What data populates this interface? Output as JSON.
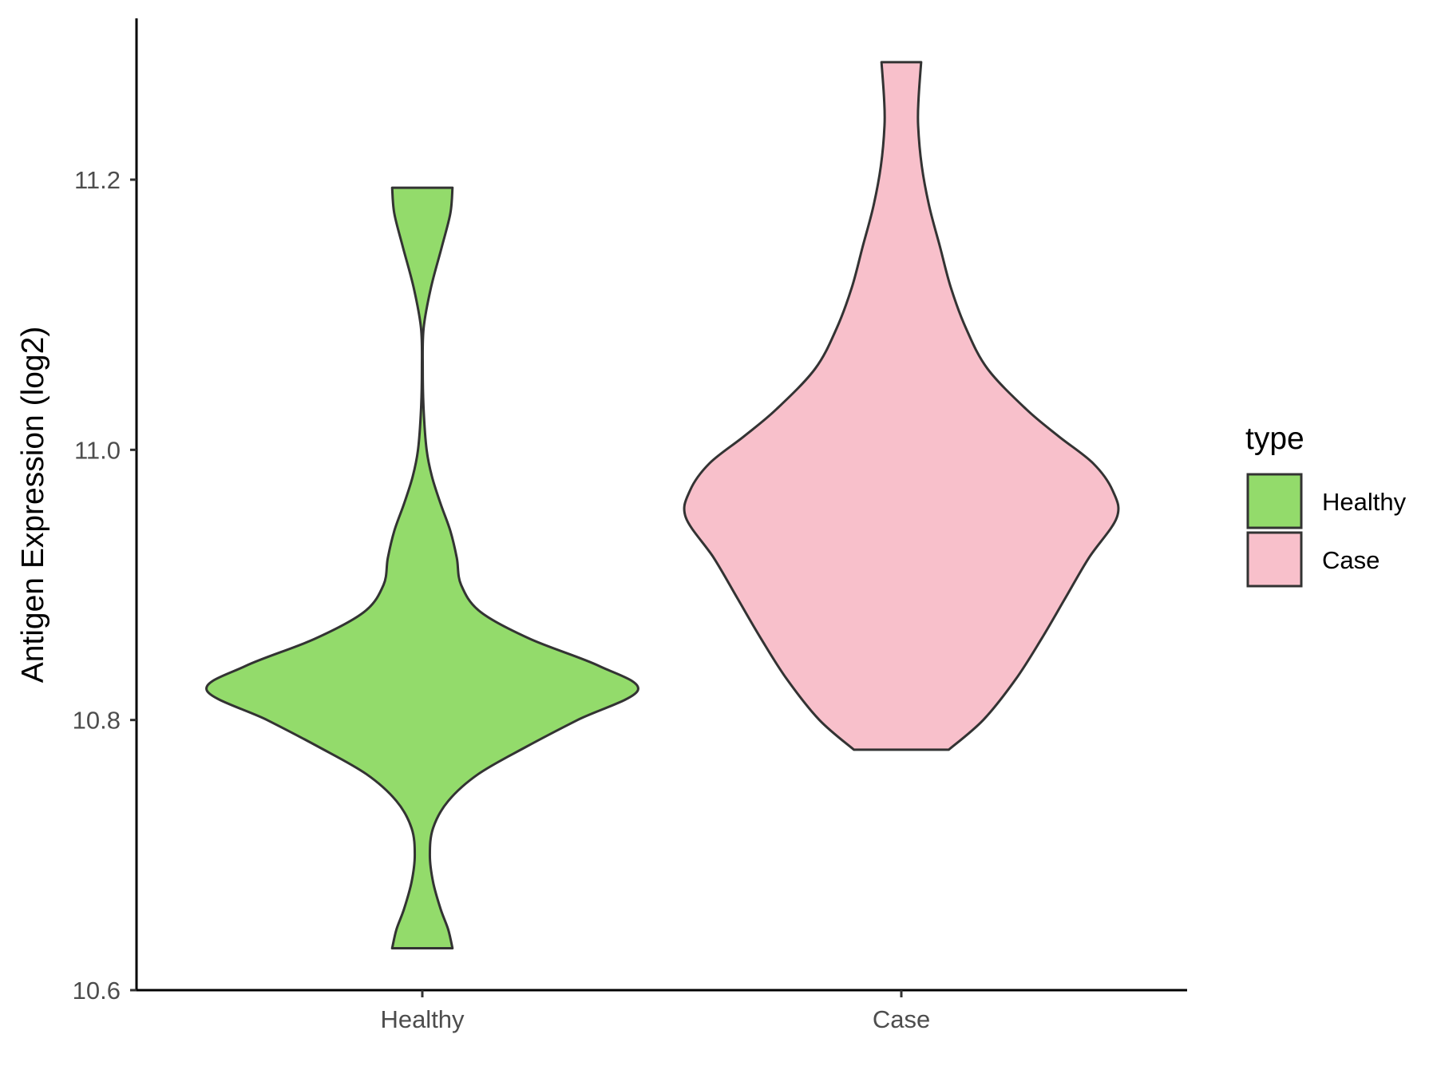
{
  "chart_data": {
    "type": "violin",
    "title": "",
    "xlabel": "",
    "ylabel": "Antigen Expression (log2)",
    "ylim": [
      10.6,
      11.33
    ],
    "yticks": [
      "10.6",
      "10.8",
      "11.0",
      "11.2"
    ],
    "categories": [
      "Healthy",
      "Case"
    ],
    "grid": false,
    "legend": {
      "title": "type",
      "position": "right",
      "entries": [
        {
          "label": "Healthy",
          "color": "#93db6b"
        },
        {
          "label": "Case",
          "color": "#f8c0cb"
        }
      ]
    },
    "series": [
      {
        "category": "Healthy",
        "color": "#93db6b",
        "range": [
          10.631,
          11.194
        ],
        "density_profile": [
          [
            10.631,
            0.14
          ],
          [
            10.645,
            0.12
          ],
          [
            10.66,
            0.085
          ],
          [
            10.68,
            0.05
          ],
          [
            10.7,
            0.035
          ],
          [
            10.72,
            0.05
          ],
          [
            10.74,
            0.12
          ],
          [
            10.76,
            0.26
          ],
          [
            10.78,
            0.48
          ],
          [
            10.8,
            0.72
          ],
          [
            10.822,
            1.0
          ],
          [
            10.84,
            0.82
          ],
          [
            10.86,
            0.5
          ],
          [
            10.88,
            0.27
          ],
          [
            10.9,
            0.18
          ],
          [
            10.92,
            0.16
          ],
          [
            10.94,
            0.13
          ],
          [
            10.96,
            0.085
          ],
          [
            10.98,
            0.045
          ],
          [
            11.0,
            0.02
          ],
          [
            11.03,
            0.006
          ],
          [
            11.06,
            0.002
          ],
          [
            11.09,
            0.006
          ],
          [
            11.12,
            0.04
          ],
          [
            11.15,
            0.09
          ],
          [
            11.175,
            0.13
          ],
          [
            11.194,
            0.14
          ]
        ]
      },
      {
        "category": "Case",
        "color": "#f8c0cb",
        "range": [
          10.778,
          11.287
        ],
        "density_profile": [
          [
            10.778,
            0.22
          ],
          [
            10.8,
            0.38
          ],
          [
            10.83,
            0.53
          ],
          [
            10.86,
            0.65
          ],
          [
            10.89,
            0.76
          ],
          [
            10.92,
            0.87
          ],
          [
            10.95,
            1.0
          ],
          [
            10.97,
            0.98
          ],
          [
            10.99,
            0.89
          ],
          [
            11.01,
            0.73
          ],
          [
            11.03,
            0.58
          ],
          [
            11.06,
            0.4
          ],
          [
            11.09,
            0.3
          ],
          [
            11.12,
            0.23
          ],
          [
            11.15,
            0.18
          ],
          [
            11.18,
            0.13
          ],
          [
            11.21,
            0.095
          ],
          [
            11.24,
            0.078
          ],
          [
            11.26,
            0.08
          ],
          [
            11.287,
            0.092
          ]
        ]
      }
    ]
  }
}
